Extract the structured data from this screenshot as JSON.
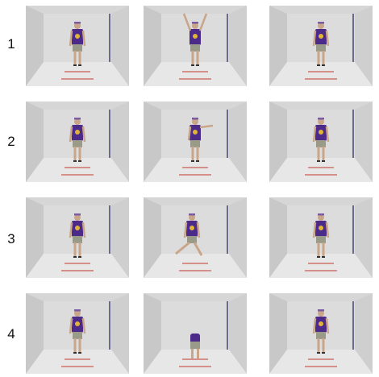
{
  "rows": [
    {
      "label": "1",
      "frames": [
        {
          "pose": "stand"
        },
        {
          "pose": "arms-up"
        },
        {
          "pose": "stand"
        }
      ]
    },
    {
      "label": "2",
      "frames": [
        {
          "pose": "stand"
        },
        {
          "pose": "arm-side"
        },
        {
          "pose": "stand"
        }
      ]
    },
    {
      "label": "3",
      "frames": [
        {
          "pose": "stand"
        },
        {
          "pose": "lunge"
        },
        {
          "pose": "stand"
        }
      ]
    },
    {
      "label": "4",
      "frames": [
        {
          "pose": "stand"
        },
        {
          "pose": "bend"
        },
        {
          "pose": "stand"
        }
      ]
    }
  ],
  "colors": {
    "shirt": "#4b2a8a",
    "shorts": "#9a9a88",
    "wall": "#d6d6d6",
    "floor": "#e7e7e7",
    "line": "#c0392b"
  }
}
